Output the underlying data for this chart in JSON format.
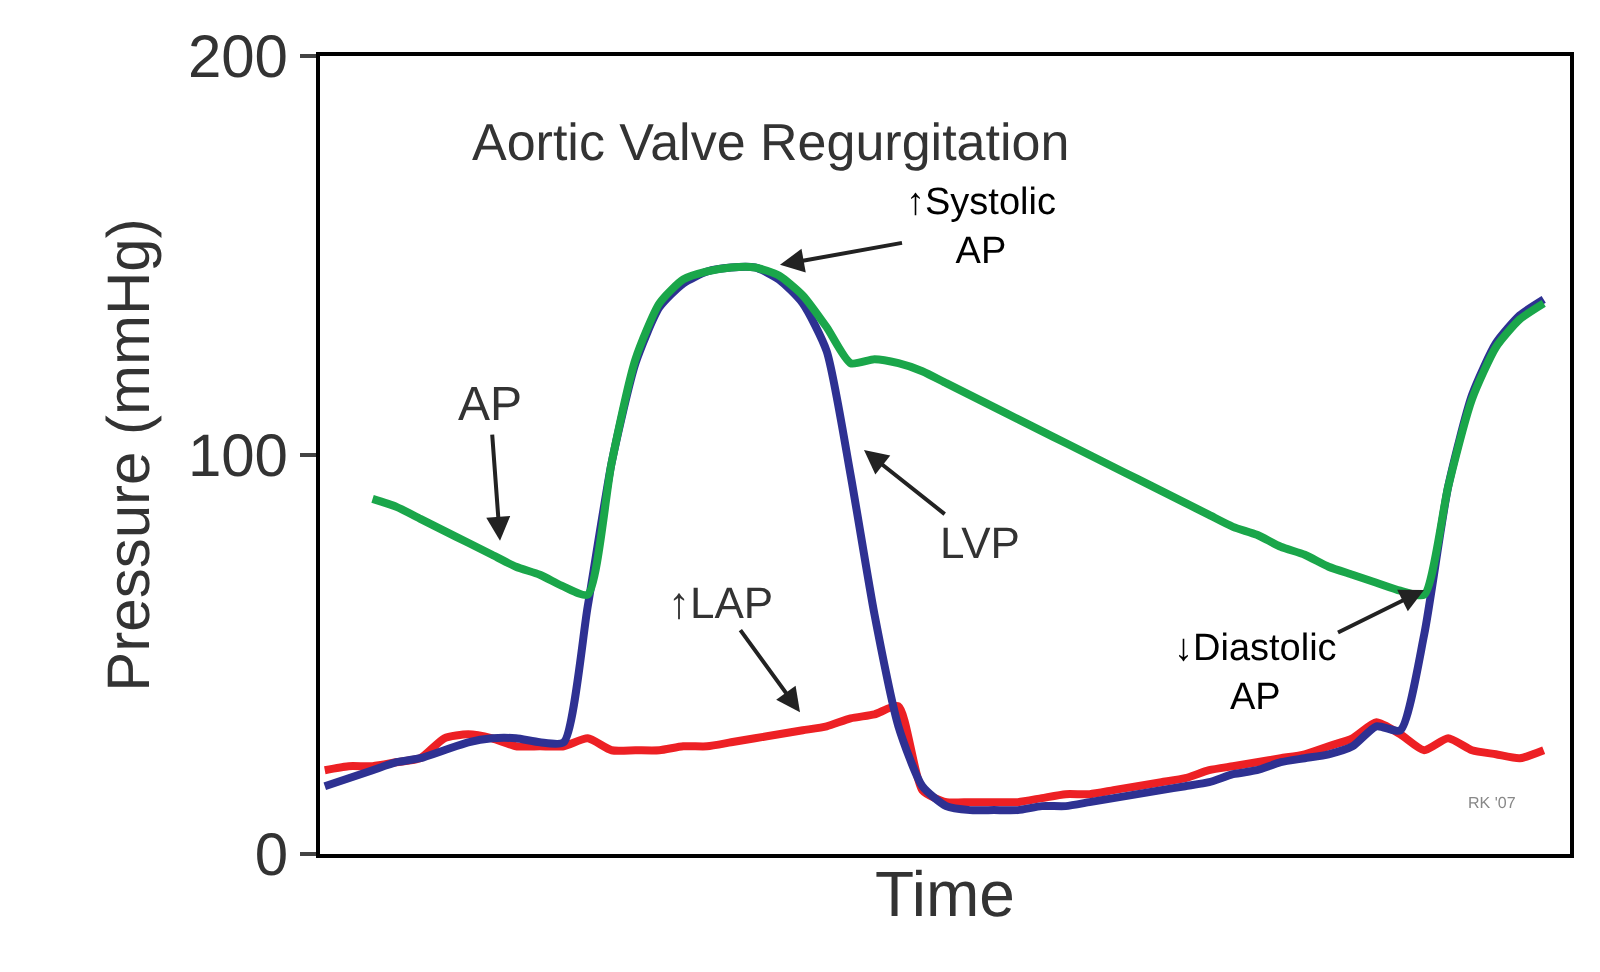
{
  "chart_data": {
    "type": "line",
    "xlabel": "Time",
    "ylabel": "Pressure (mmHg)",
    "categories": [
      null,
      null,
      null,
      null,
      null,
      null,
      null,
      null,
      null,
      null,
      null,
      null,
      null,
      null,
      null,
      null,
      null,
      null,
      null,
      null,
      null,
      null,
      null,
      null,
      null,
      null,
      null,
      null,
      null,
      null,
      null,
      null,
      null,
      null,
      null,
      null,
      null,
      null,
      null,
      null,
      null,
      null,
      null,
      null,
      null,
      null,
      null,
      null,
      null,
      null,
      null,
      null
    ],
    "series": [
      {
        "color": "#ed2024",
        "values": [
          21,
          22,
          22,
          23,
          24,
          29,
          30,
          29,
          27,
          27,
          27,
          29,
          26,
          26,
          26,
          27,
          27,
          28,
          29,
          30,
          31,
          32,
          34,
          35,
          37,
          16,
          13,
          13,
          13,
          13,
          14,
          15,
          15,
          16,
          17,
          18,
          19,
          21,
          22,
          23,
          24,
          25,
          27,
          29,
          33,
          30,
          26,
          29,
          26,
          25,
          24,
          26
        ]
      },
      {
        "color": "#2e3192",
        "values": [
          17,
          19,
          21,
          23,
          24,
          26,
          28,
          29,
          29,
          28,
          28,
          62,
          98,
          123,
          137,
          143,
          146,
          147,
          147,
          144,
          138,
          126,
          95,
          60,
          32,
          17,
          12,
          11,
          11,
          11,
          12,
          12,
          13,
          14,
          15,
          16,
          17,
          18,
          20,
          21,
          23,
          24,
          25,
          27,
          32,
          31,
          55,
          92,
          115,
          128,
          135,
          139
        ]
      },
      {
        "color": "#1aa64a",
        "values": [
          null,
          null,
          89,
          87,
          84,
          81,
          78,
          75,
          72,
          70,
          67,
          65,
          98,
          124,
          138,
          144,
          146,
          147,
          147,
          145,
          140,
          132,
          123,
          124,
          123,
          121,
          118,
          115,
          112,
          109,
          106,
          103,
          100,
          97,
          94,
          91,
          88,
          85,
          82,
          80,
          77,
          75,
          72,
          70,
          68,
          66,
          65,
          92,
          114,
          127,
          134,
          138
        ]
      }
    ],
    "ylim": [
      0,
      200
    ],
    "yticks": [
      0,
      100,
      200
    ],
    "tick_labels": "y",
    "marker": "none",
    "line_style": "solid",
    "annotations": [
      "Aortic Valve Regurgitation",
      "AP",
      "↑Systolic\nAP",
      "LVP",
      "↑LAP",
      "↓Diastolic\nAP",
      "RK '07"
    ]
  }
}
